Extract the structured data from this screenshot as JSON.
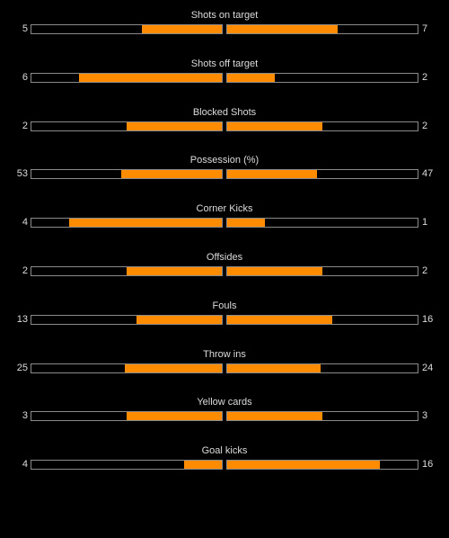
{
  "colors": {
    "background": "#000000",
    "bar_fill": "#ff8c00",
    "bar_border": "#8a8a8a",
    "text": "#dcdcdc"
  },
  "stats": [
    {
      "label": "Shots on target",
      "home": 5,
      "away": 7,
      "home_fraction": 0.42,
      "away_fraction": 0.58
    },
    {
      "label": "Shots off target",
      "home": 6,
      "away": 2,
      "home_fraction": 0.75,
      "away_fraction": 0.25
    },
    {
      "label": "Blocked Shots",
      "home": 2,
      "away": 2,
      "home_fraction": 0.5,
      "away_fraction": 0.5
    },
    {
      "label": "Possession (%)",
      "home": 53,
      "away": 47,
      "home_fraction": 0.53,
      "away_fraction": 0.47
    },
    {
      "label": "Corner Kicks",
      "home": 4,
      "away": 1,
      "home_fraction": 0.8,
      "away_fraction": 0.2
    },
    {
      "label": "Offsides",
      "home": 2,
      "away": 2,
      "home_fraction": 0.5,
      "away_fraction": 0.5
    },
    {
      "label": "Fouls",
      "home": 13,
      "away": 16,
      "home_fraction": 0.45,
      "away_fraction": 0.55
    },
    {
      "label": "Throw ins",
      "home": 25,
      "away": 24,
      "home_fraction": 0.51,
      "away_fraction": 0.49
    },
    {
      "label": "Yellow cards",
      "home": 3,
      "away": 3,
      "home_fraction": 0.5,
      "away_fraction": 0.5
    },
    {
      "label": "Goal kicks",
      "home": 4,
      "away": 16,
      "home_fraction": 0.2,
      "away_fraction": 0.8
    }
  ]
}
